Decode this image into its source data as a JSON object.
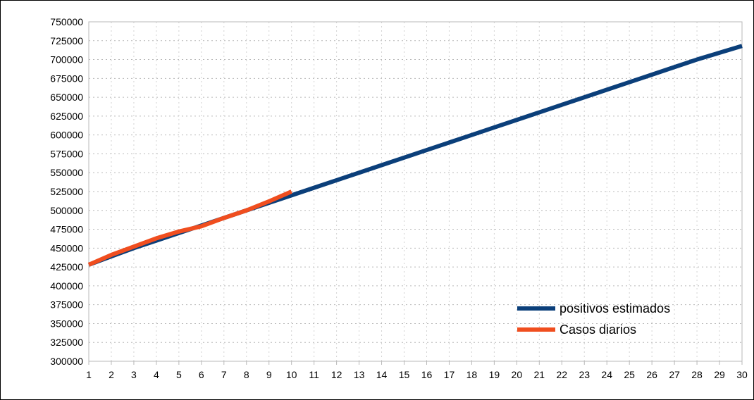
{
  "chart_data": {
    "type": "line",
    "title": "",
    "xlabel": "",
    "ylabel": "",
    "x": [
      1,
      2,
      3,
      4,
      5,
      6,
      7,
      8,
      9,
      10,
      11,
      12,
      13,
      14,
      15,
      16,
      17,
      18,
      19,
      20,
      21,
      22,
      23,
      24,
      25,
      26,
      27,
      28,
      29,
      30
    ],
    "xlim": [
      1,
      30
    ],
    "ylim": [
      300000,
      750000
    ],
    "ytick_step": 25000,
    "grid": true,
    "legend_position": "bottom-right",
    "series": [
      {
        "name": "positivos estimados",
        "color": "#0b3f7a",
        "x": [
          1,
          2,
          3,
          4,
          5,
          6,
          7,
          8,
          9,
          10,
          11,
          12,
          13,
          14,
          15,
          16,
          17,
          18,
          19,
          20,
          21,
          22,
          23,
          24,
          25,
          26,
          27,
          28,
          29,
          30
        ],
        "values": [
          428000,
          439000,
          450000,
          460000,
          470000,
          480000,
          490000,
          500000,
          510000,
          520000,
          530000,
          540000,
          550000,
          560000,
          570000,
          580000,
          590000,
          600000,
          610000,
          620000,
          630000,
          640000,
          650000,
          660000,
          670000,
          680000,
          690000,
          700000,
          709000,
          718000
        ]
      },
      {
        "name": "Casos diarios",
        "color": "#f04e1f",
        "x": [
          1,
          2,
          3,
          4,
          5,
          6,
          7,
          8,
          9,
          10
        ],
        "values": [
          428000,
          441000,
          452000,
          463000,
          472000,
          479000,
          490000,
          500000,
          512000,
          525000
        ]
      }
    ]
  }
}
